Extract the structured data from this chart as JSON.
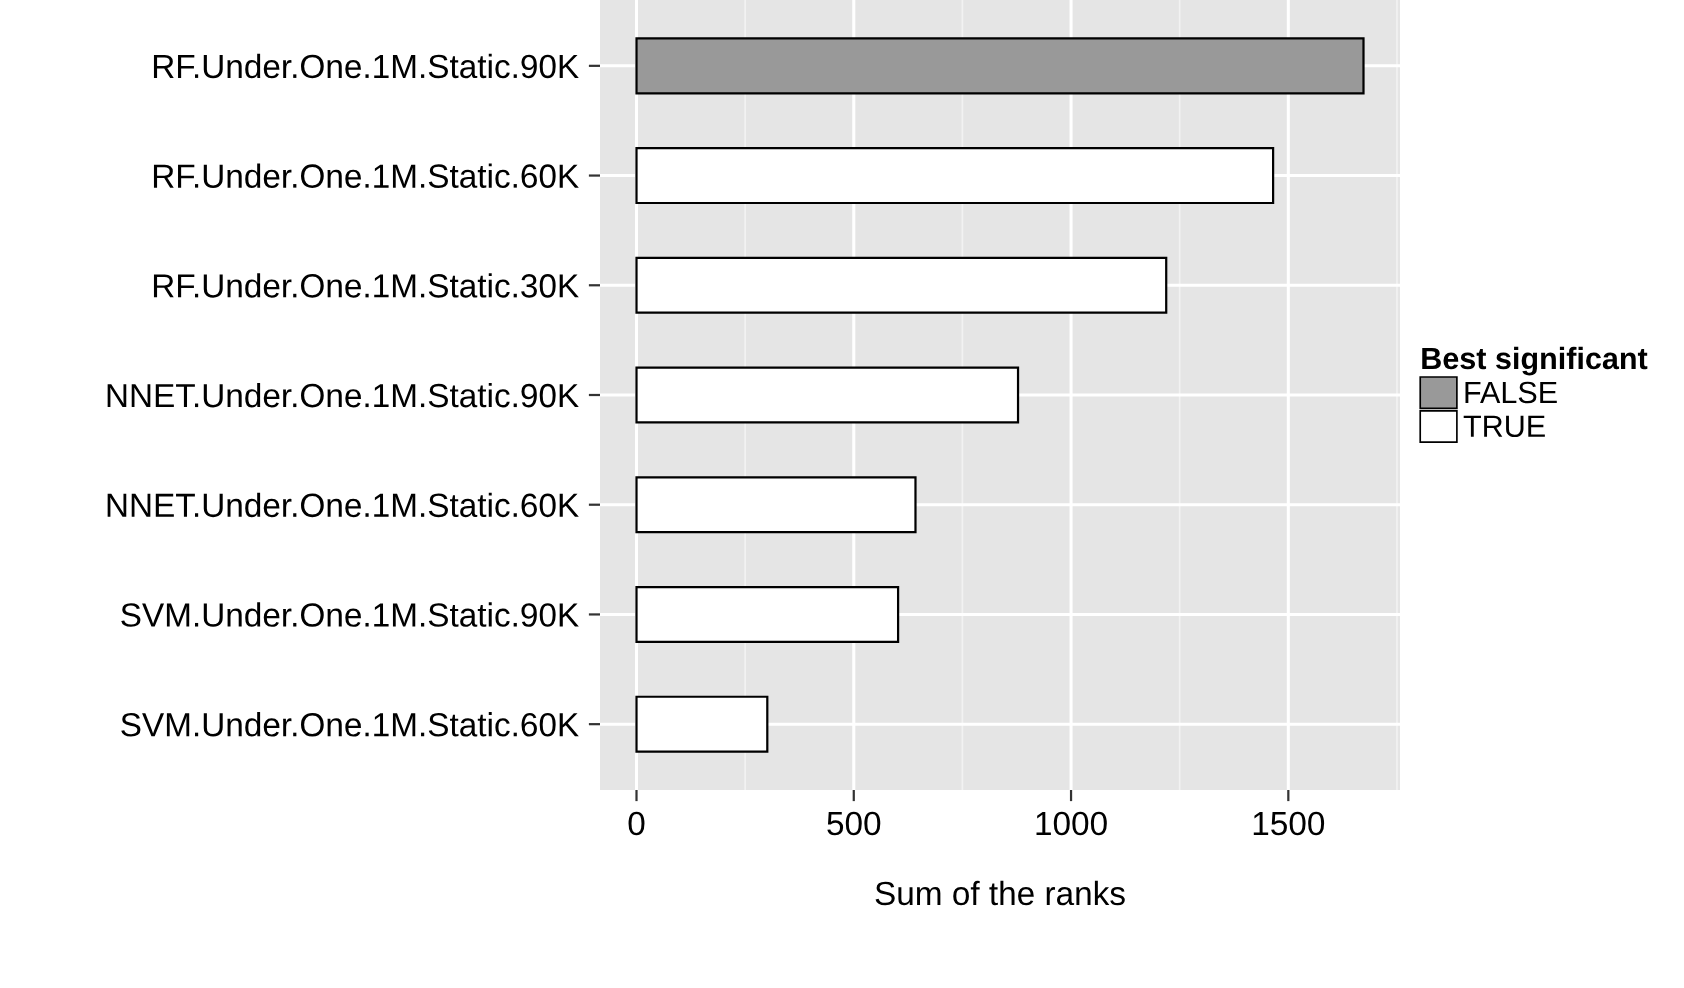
{
  "chart_data": {
    "type": "bar",
    "orientation": "horizontal",
    "xlabel": "Sum of the ranks",
    "legend_title": "Best significant",
    "legend": "right",
    "grid": true,
    "categories": [
      "RF.Under.One.1M.Static.90K",
      "RF.Under.One.1M.Static.60K",
      "RF.Under.One.1M.Static.30K",
      "NNET.Under.One.1M.Static.90K",
      "NNET.Under.One.1M.Static.60K",
      "SVM.Under.One.1M.Static.90K",
      "SVM.Under.One.1M.Static.60K"
    ],
    "series": [
      {
        "name": "FALSE",
        "color": "#999999",
        "values": [
          1673,
          null,
          null,
          null,
          null,
          null,
          null
        ]
      },
      {
        "name": "TRUE",
        "color": "#ffffff",
        "values": [
          null,
          1465,
          1219,
          878,
          642,
          602,
          301
        ]
      }
    ],
    "xlim": [
      -84,
      1757
    ],
    "xticks": [
      0,
      500,
      1000,
      1500
    ]
  }
}
